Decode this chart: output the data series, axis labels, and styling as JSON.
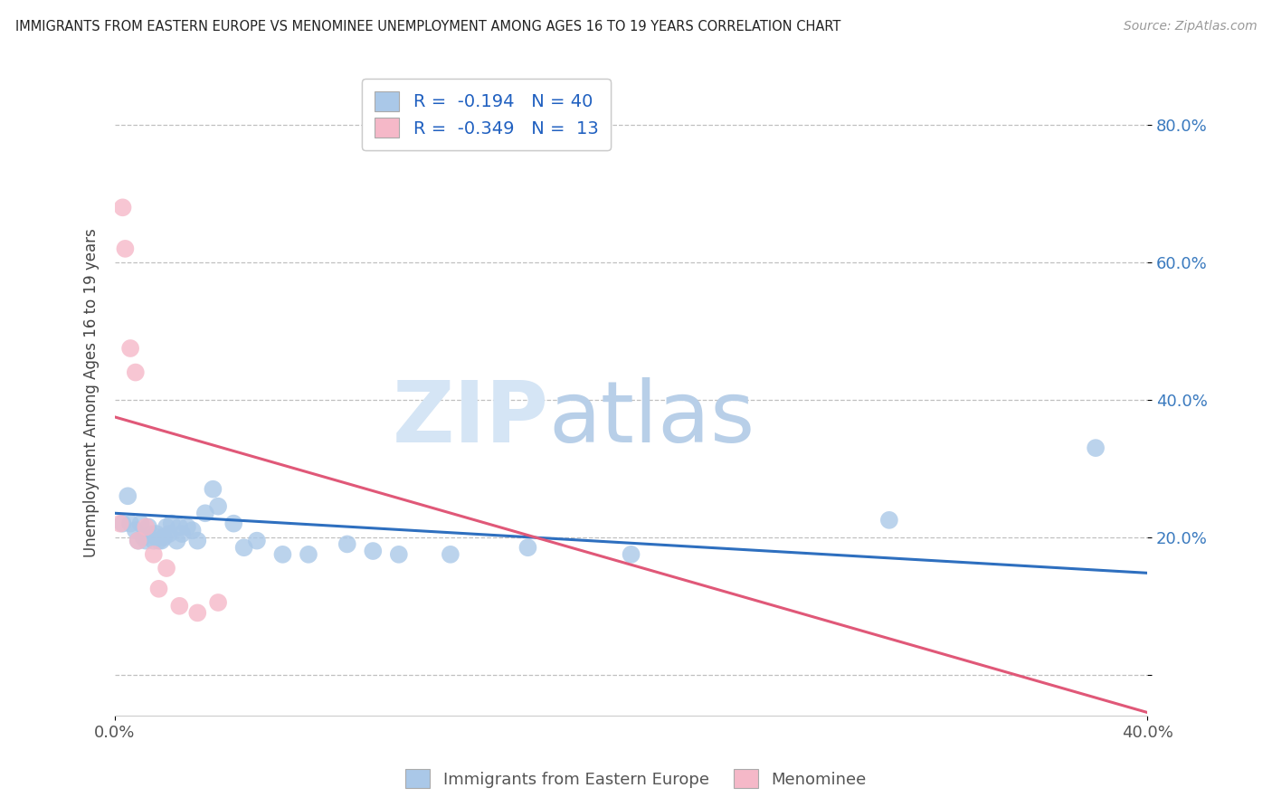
{
  "title": "IMMIGRANTS FROM EASTERN EUROPE VS MENOMINEE UNEMPLOYMENT AMONG AGES 16 TO 19 YEARS CORRELATION CHART",
  "source": "Source: ZipAtlas.com",
  "ylabel": "Unemployment Among Ages 16 to 19 years",
  "legend_labels": [
    "Immigrants from Eastern Europe",
    "Menominee"
  ],
  "blue_R": -0.194,
  "blue_N": 40,
  "pink_R": -0.349,
  "pink_N": 13,
  "blue_color": "#aac8e8",
  "pink_color": "#f5b8c8",
  "blue_line_color": "#2e6fbf",
  "pink_line_color": "#e05878",
  "watermark_zip": "ZIP",
  "watermark_atlas": "atlas",
  "xlim": [
    0.0,
    0.4
  ],
  "ylim": [
    -0.06,
    0.88
  ],
  "ytick_vals": [
    0.0,
    0.2,
    0.4,
    0.6,
    0.8
  ],
  "ytick_labels": [
    "",
    "20.0%",
    "40.0%",
    "60.0%",
    "80.0%"
  ],
  "xtick_vals": [
    0.0,
    0.4
  ],
  "xtick_labels": [
    "0.0%",
    "40.0%"
  ],
  "blue_scatter_x": [
    0.003,
    0.005,
    0.006,
    0.008,
    0.009,
    0.01,
    0.011,
    0.012,
    0.013,
    0.014,
    0.015,
    0.016,
    0.017,
    0.018,
    0.019,
    0.02,
    0.021,
    0.022,
    0.024,
    0.025,
    0.026,
    0.028,
    0.03,
    0.032,
    0.035,
    0.038,
    0.04,
    0.046,
    0.05,
    0.055,
    0.065,
    0.075,
    0.09,
    0.1,
    0.11,
    0.13,
    0.16,
    0.2,
    0.3,
    0.38
  ],
  "blue_scatter_y": [
    0.22,
    0.26,
    0.22,
    0.21,
    0.195,
    0.22,
    0.2,
    0.195,
    0.215,
    0.205,
    0.195,
    0.205,
    0.195,
    0.195,
    0.2,
    0.215,
    0.205,
    0.22,
    0.195,
    0.215,
    0.205,
    0.215,
    0.21,
    0.195,
    0.235,
    0.27,
    0.245,
    0.22,
    0.185,
    0.195,
    0.175,
    0.175,
    0.19,
    0.18,
    0.175,
    0.175,
    0.185,
    0.175,
    0.225,
    0.33
  ],
  "pink_scatter_x": [
    0.002,
    0.003,
    0.004,
    0.006,
    0.008,
    0.009,
    0.012,
    0.015,
    0.017,
    0.02,
    0.025,
    0.032,
    0.04
  ],
  "pink_scatter_y": [
    0.22,
    0.68,
    0.62,
    0.475,
    0.44,
    0.195,
    0.215,
    0.175,
    0.125,
    0.155,
    0.1,
    0.09,
    0.105
  ],
  "blue_line_x": [
    0.0,
    0.4
  ],
  "blue_line_y": [
    0.235,
    0.148
  ],
  "pink_line_x": [
    0.0,
    0.4
  ],
  "pink_line_y": [
    0.375,
    -0.055
  ]
}
